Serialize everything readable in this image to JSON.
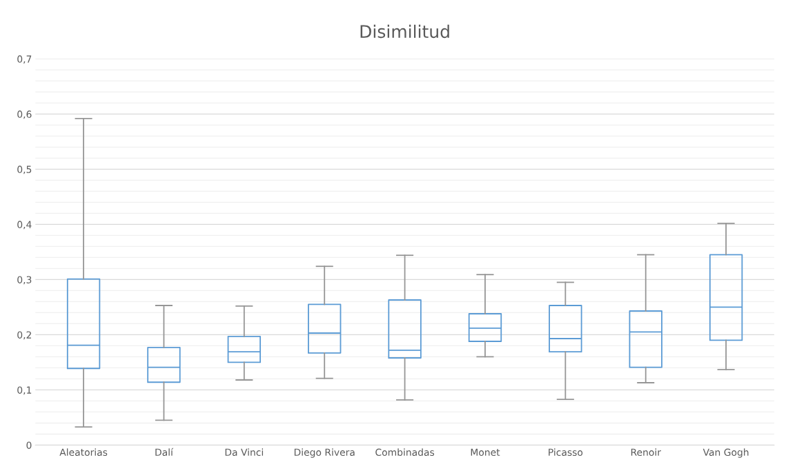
{
  "chart_data": {
    "type": "box",
    "title": "Disimilitud",
    "categories": [
      "Aleatorias",
      "Dalí",
      "Da Vinci",
      "Diego Rivera",
      "Combinadas",
      "Monet",
      "Picasso",
      "Renoir",
      "Van Gogh"
    ],
    "series": [
      {
        "color": "#5b9bd5",
        "boxes": [
          {
            "low": 0.033,
            "q1": 0.139,
            "median": 0.181,
            "q3": 0.301,
            "high": 0.592
          },
          {
            "low": 0.045,
            "q1": 0.114,
            "median": 0.141,
            "q3": 0.177,
            "high": 0.253
          },
          {
            "low": 0.118,
            "q1": 0.15,
            "median": 0.169,
            "q3": 0.197,
            "high": 0.252
          },
          {
            "low": 0.121,
            "q1": 0.167,
            "median": 0.203,
            "q3": 0.255,
            "high": 0.324
          },
          {
            "low": 0.082,
            "q1": 0.158,
            "median": 0.172,
            "q3": 0.263,
            "high": 0.344
          },
          {
            "low": 0.16,
            "q1": 0.188,
            "median": 0.212,
            "q3": 0.238,
            "high": 0.309
          },
          {
            "low": 0.083,
            "q1": 0.169,
            "median": 0.193,
            "q3": 0.253,
            "high": 0.295
          },
          {
            "low": 0.113,
            "q1": 0.141,
            "median": 0.205,
            "q3": 0.243,
            "high": 0.345
          },
          {
            "low": 0.137,
            "q1": 0.19,
            "median": 0.25,
            "q3": 0.345,
            "high": 0.402
          }
        ]
      }
    ],
    "ylim": [
      0,
      0.7
    ],
    "yticks": [
      0,
      {
        "value": 0.1,
        "label": "0,1"
      },
      {
        "value": 0.2,
        "label": "0,2"
      },
      {
        "value": 0.3,
        "label": "0,3"
      },
      {
        "value": 0.4,
        "label": "0,4"
      },
      {
        "value": 0.5,
        "label": "0,5"
      },
      {
        "value": 0.6,
        "label": "0,6"
      },
      {
        "value": 0.7,
        "label": "0,7"
      }
    ],
    "grid": "y"
  }
}
